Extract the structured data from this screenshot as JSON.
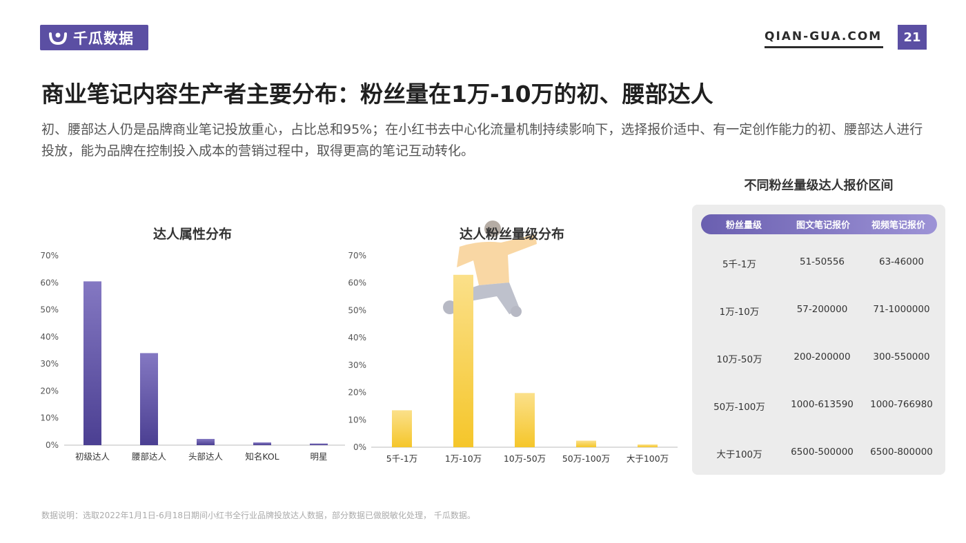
{
  "header": {
    "logo_text": "千瓜数据",
    "site": "QIAN-GUA.COM",
    "page_number": "21",
    "brand_color": "#5b4fa3"
  },
  "headline": "商业笔记内容生产者主要分布：粉丝量在1万-10万的初、腰部达人",
  "subtext": "初、腰部达人仍是品牌商业笔记投放重心，占比总和95%；在小红书去中心化流量机制持续影响下，选择报价适中、有一定创作能力的初、腰部达人进行投放，能为品牌在控制投入成本的营销过程中，取得更高的笔记互动转化。",
  "chart_data": [
    {
      "type": "bar",
      "title": "达人属性分布",
      "categories": [
        "初级达人",
        "腰部达人",
        "头部达人",
        "知名KOL",
        "明星"
      ],
      "values": [
        60.5,
        34,
        2.3,
        1.0,
        0.6
      ],
      "yticks": [
        "0%",
        "10%",
        "20%",
        "30%",
        "40%",
        "50%",
        "60%",
        "70%"
      ],
      "ylim": [
        0,
        70
      ],
      "color": "#5a4e9e",
      "grid": false
    },
    {
      "type": "bar",
      "title": "达人粉丝量级分布",
      "categories": [
        "5千-1万",
        "1万-10万",
        "10万-50万",
        "50万-100万",
        "大于100万"
      ],
      "values": [
        13.5,
        63,
        19.8,
        2.4,
        1.0
      ],
      "yticks": [
        "0%",
        "10%",
        "20%",
        "30%",
        "40%",
        "50%",
        "60%",
        "70%"
      ],
      "ylim": [
        0,
        70
      ],
      "color": "#f7c934",
      "grid": false
    }
  ],
  "price_table": {
    "title": "不同粉丝量级达人报价区间",
    "headers": [
      "粉丝量级",
      "图文笔记报价",
      "视频笔记报价"
    ],
    "rows": [
      [
        "5千-1万",
        "51-50556",
        "63-46000"
      ],
      [
        "1万-10万",
        "57-200000",
        "71-1000000"
      ],
      [
        "10万-50万",
        "200-200000",
        "300-550000"
      ],
      [
        "50万-100万",
        "1000-613590",
        "1000-766980"
      ],
      [
        "大于100万",
        "6500-500000",
        "6500-800000"
      ]
    ]
  },
  "footnote": "数据说明：选取2022年1月1日-6月18日期间小红书全行业品牌投放达人数据，部分数据已做脱敏化处理， 千瓜数据。"
}
